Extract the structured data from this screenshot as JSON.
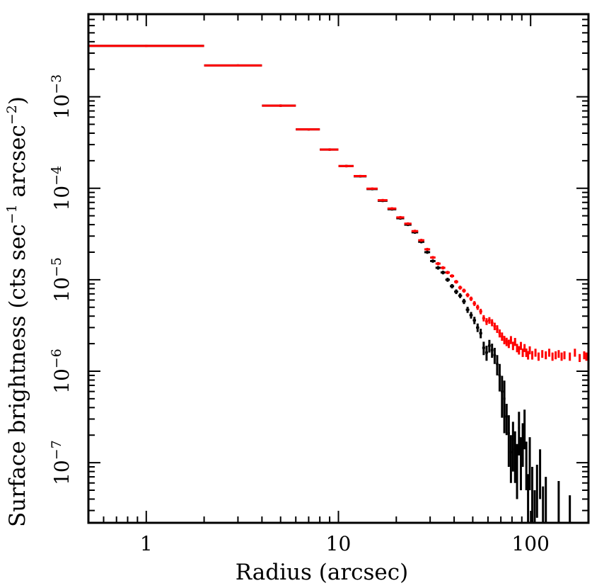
{
  "chart_data": {
    "type": "scatter",
    "title": "",
    "xlabel": "Radius (arcsec)",
    "ylabel": {
      "main": "Surface brightness (cts sec",
      "sup1": "−1",
      "mid": " arcsec",
      "sup2": "−2",
      "end": ")"
    },
    "x_scale": "log",
    "y_scale": "log",
    "xlim": [
      0.5,
      200
    ],
    "ylim": [
      2.2e-08,
      0.008
    ],
    "x_ticks": [
      {
        "value": 1,
        "label": "1"
      },
      {
        "value": 10,
        "label": "10"
      },
      {
        "value": 100,
        "label": "100"
      }
    ],
    "y_ticks": [
      {
        "value": 1e-07,
        "base": "10",
        "exp": "−7"
      },
      {
        "value": 1e-06,
        "base": "10",
        "exp": "−6"
      },
      {
        "value": 1e-05,
        "base": "10",
        "exp": "−5"
      },
      {
        "value": 0.0001,
        "base": "10",
        "exp": "−4"
      },
      {
        "value": 0.001,
        "base": "10",
        "exp": "−3"
      }
    ],
    "grid": false,
    "legend": "none",
    "series": [
      {
        "color": "#000000",
        "x": [
          1,
          3,
          5,
          7,
          9,
          11,
          13,
          15,
          17,
          19,
          21,
          23,
          25,
          27,
          29,
          31,
          33,
          35,
          37,
          39,
          41,
          43,
          45,
          47,
          49,
          51,
          53,
          55,
          57,
          59,
          61,
          63,
          65,
          67,
          69,
          71,
          73,
          75,
          77,
          79,
          81,
          83,
          85,
          87,
          89,
          91,
          93,
          95,
          97,
          99,
          102,
          105,
          108,
          112,
          116,
          120,
          140,
          160
        ],
        "xerr": [
          1,
          1,
          1,
          1,
          1,
          1,
          1,
          1,
          1,
          1,
          1,
          1,
          1,
          1,
          1,
          1,
          1,
          1,
          1,
          1,
          1,
          1,
          1,
          1,
          1,
          1,
          1,
          1,
          1,
          1,
          1,
          1,
          1,
          1,
          1,
          1,
          1,
          1,
          1,
          1,
          1,
          1,
          1,
          1,
          1,
          1,
          1,
          1,
          1,
          1,
          1,
          1,
          1,
          1,
          1,
          1,
          1,
          1
        ],
        "y": [
          0.0036,
          0.0022,
          0.0008,
          0.00044,
          0.000265,
          0.000175,
          0.000135,
          9.8e-05,
          7.3e-05,
          5.9e-05,
          4.7e-05,
          4e-05,
          3.3e-05,
          2.6e-05,
          2e-05,
          1.6e-05,
          1.35e-05,
          1.2e-05,
          1e-05,
          8.5e-06,
          7.4e-06,
          6.7e-06,
          5.8e-06,
          4.7e-06,
          4.1e-06,
          3.6e-06,
          3e-06,
          2.6e-06,
          1.8e-06,
          1.6e-06,
          1.9e-06,
          1.7e-06,
          1.5e-06,
          1.2e-06,
          9e-07,
          6e-07,
          5e-07,
          3.2e-07,
          2.1e-07,
          1.3e-07,
          1.8e-07,
          1.4e-07,
          1e-07,
          2.4e-07,
          1.2e-07,
          1.8e-07,
          2.6e-07,
          1.1e-07,
          4.5e-08,
          1.2e-07,
          5.5e-08,
          3e-08,
          6e-08,
          9e-08,
          3.5e-08,
          4.5e-08,
          4e-08,
          2.8e-08
        ],
        "yerr": [
          0.0001,
          6e-05,
          2.5e-05,
          1.3e-05,
          8e-06,
          5.5e-06,
          4e-06,
          3e-06,
          2.4e-06,
          2e-06,
          1.7e-06,
          1.4e-06,
          1.2e-06,
          1e-06,
          8e-07,
          6.5e-07,
          6e-07,
          5.5e-07,
          5e-07,
          4.6e-07,
          4.3e-07,
          4e-07,
          3.8e-07,
          3.6e-07,
          3.4e-07,
          3.3e-07,
          3.2e-07,
          3.1e-07,
          3e-07,
          3e-07,
          3e-07,
          3e-07,
          3e-07,
          3e-07,
          3e-07,
          2.9e-07,
          2.9e-07,
          1.2e-07,
          1.2e-07,
          7e-08,
          1e-07,
          8e-08,
          6e-08,
          1.2e-07,
          7e-08,
          9e-08,
          1.2e-07,
          6e-08,
          3e-08,
          7e-08,
          3.5e-08,
          2e-08,
          3.5e-08,
          5e-08,
          2e-08,
          2.5e-08,
          2.3e-08,
          1.6e-08
        ]
      },
      {
        "color": "#ff0000",
        "x": [
          1,
          3,
          5,
          7,
          9,
          11,
          13,
          15,
          17,
          19,
          21,
          23,
          25,
          27,
          29,
          31,
          33,
          35,
          37,
          39,
          41,
          43,
          45,
          47,
          49,
          51,
          53,
          55,
          57,
          59,
          61,
          63,
          65,
          67,
          69,
          71,
          73,
          75,
          77,
          79,
          81,
          83,
          85,
          87,
          89,
          91,
          93,
          95,
          97,
          99,
          102,
          106,
          110,
          115,
          120,
          125,
          130,
          135,
          140,
          145,
          150,
          160,
          170,
          180,
          190,
          195
        ],
        "xerr": [
          1,
          1,
          1,
          1,
          1,
          1,
          1,
          1,
          1,
          1,
          1,
          1,
          1,
          1,
          1,
          1,
          1,
          1,
          1,
          1,
          1,
          1,
          1,
          1,
          1,
          1,
          1,
          1,
          1,
          1,
          1,
          1,
          1,
          1,
          1,
          1,
          1,
          1,
          1,
          1,
          1,
          1,
          1,
          1,
          1,
          1,
          1,
          1,
          1,
          1,
          1,
          1,
          1,
          1,
          1,
          1,
          1,
          1,
          1,
          1,
          1,
          1,
          1,
          1,
          1,
          1
        ],
        "y": [
          0.0036,
          0.0022,
          0.0008,
          0.00044,
          0.000265,
          0.000175,
          0.000136,
          9.9e-05,
          7.4e-05,
          6e-05,
          4.8e-05,
          4.1e-05,
          3.4e-05,
          2.7e-05,
          2.15e-05,
          1.75e-05,
          1.5e-05,
          1.35e-05,
          1.2e-05,
          1.1e-05,
          9.5e-06,
          8.2e-06,
          7.6e-06,
          6.8e-06,
          6.2e-06,
          5.5e-06,
          5e-06,
          4.5e-06,
          3.8e-06,
          3.5e-06,
          3.6e-06,
          3.4e-06,
          3.1e-06,
          2.9e-06,
          2.6e-06,
          2.4e-06,
          2.2e-06,
          2.1e-06,
          2e-06,
          2.2e-06,
          1.9e-06,
          2.1e-06,
          1.8e-06,
          1.7e-06,
          1.9e-06,
          1.6e-06,
          1.8e-06,
          1.6e-06,
          1.5e-06,
          1.7e-06,
          1.5e-06,
          1.6e-06,
          1.45e-06,
          1.55e-06,
          1.5e-06,
          1.6e-06,
          1.45e-06,
          1.5e-06,
          1.55e-06,
          1.45e-06,
          1.5e-06,
          1.45e-06,
          1.6e-06,
          1.4e-06,
          1.5e-06,
          1.45e-06
        ],
        "yerr": [
          0.0001,
          6e-05,
          2.5e-05,
          1.3e-05,
          8e-06,
          5.5e-06,
          4e-06,
          3e-06,
          2.4e-06,
          2e-06,
          1.7e-06,
          1.4e-06,
          1.2e-06,
          1e-06,
          8e-07,
          6.5e-07,
          6e-07,
          5.5e-07,
          5e-07,
          4.6e-07,
          4.3e-07,
          4e-07,
          3.8e-07,
          3.6e-07,
          3.4e-07,
          3.3e-07,
          3.2e-07,
          3.1e-07,
          3e-07,
          3e-07,
          3e-07,
          3e-07,
          2.9e-07,
          2.8e-07,
          2.6e-07,
          2.5e-07,
          2.3e-07,
          2.2e-07,
          2.1e-07,
          2.2e-07,
          2e-07,
          2.1e-07,
          1.9e-07,
          1.8e-07,
          1.9e-07,
          1.7e-07,
          1.8e-07,
          1.7e-07,
          1.6e-07,
          1.7e-07,
          1.6e-07,
          1.6e-07,
          1.5e-07,
          1.5e-07,
          1.5e-07,
          1.6e-07,
          1.5e-07,
          1.5e-07,
          1.5e-07,
          1.5e-07,
          1.5e-07,
          1.5e-07,
          1.6e-07,
          1.4e-07,
          1.5e-07,
          1.5e-07
        ]
      }
    ]
  }
}
